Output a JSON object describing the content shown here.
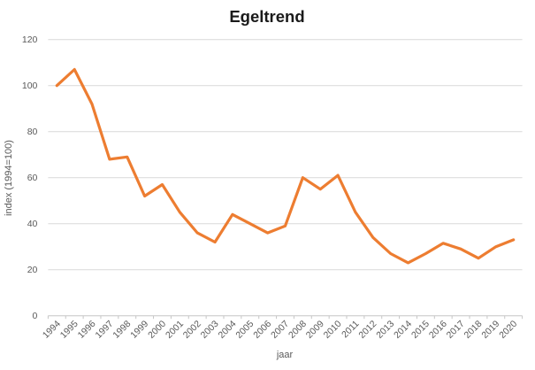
{
  "window": {
    "background_color": "#ffffff"
  },
  "chart_data": {
    "type": "line",
    "title": "Egeltrend",
    "xlabel": "jaar",
    "ylabel": "index (1994=100)",
    "categories": [
      "1994",
      "1995",
      "1996",
      "1997",
      "1998",
      "1999",
      "2000",
      "2001",
      "2002",
      "2003",
      "2004",
      "2005",
      "2006",
      "2007",
      "2008",
      "2009",
      "2010",
      "2011",
      "2012",
      "2013",
      "2014",
      "2015",
      "2016",
      "2017",
      "2018",
      "2019",
      "2020"
    ],
    "series": [
      {
        "name": "index",
        "values": [
          100,
          107,
          92,
          68,
          69,
          52,
          57,
          45,
          36,
          32,
          44,
          40,
          36,
          39,
          60,
          55,
          61,
          45,
          34,
          27,
          23,
          27,
          31.5,
          29,
          25,
          30,
          33
        ]
      }
    ],
    "ylim": [
      0,
      120
    ],
    "yticks": [
      0,
      20,
      40,
      60,
      80,
      100,
      120
    ],
    "grid": true,
    "legend_position": "none",
    "x_label_rotation_deg": -45,
    "colors": {
      "line": "#ED7D31",
      "gridline": "#D9D9D9",
      "axis_line": "#C6C6C6",
      "tick_label": "#595959",
      "axis_title": "#595959",
      "title": "#1A1A1A"
    }
  }
}
